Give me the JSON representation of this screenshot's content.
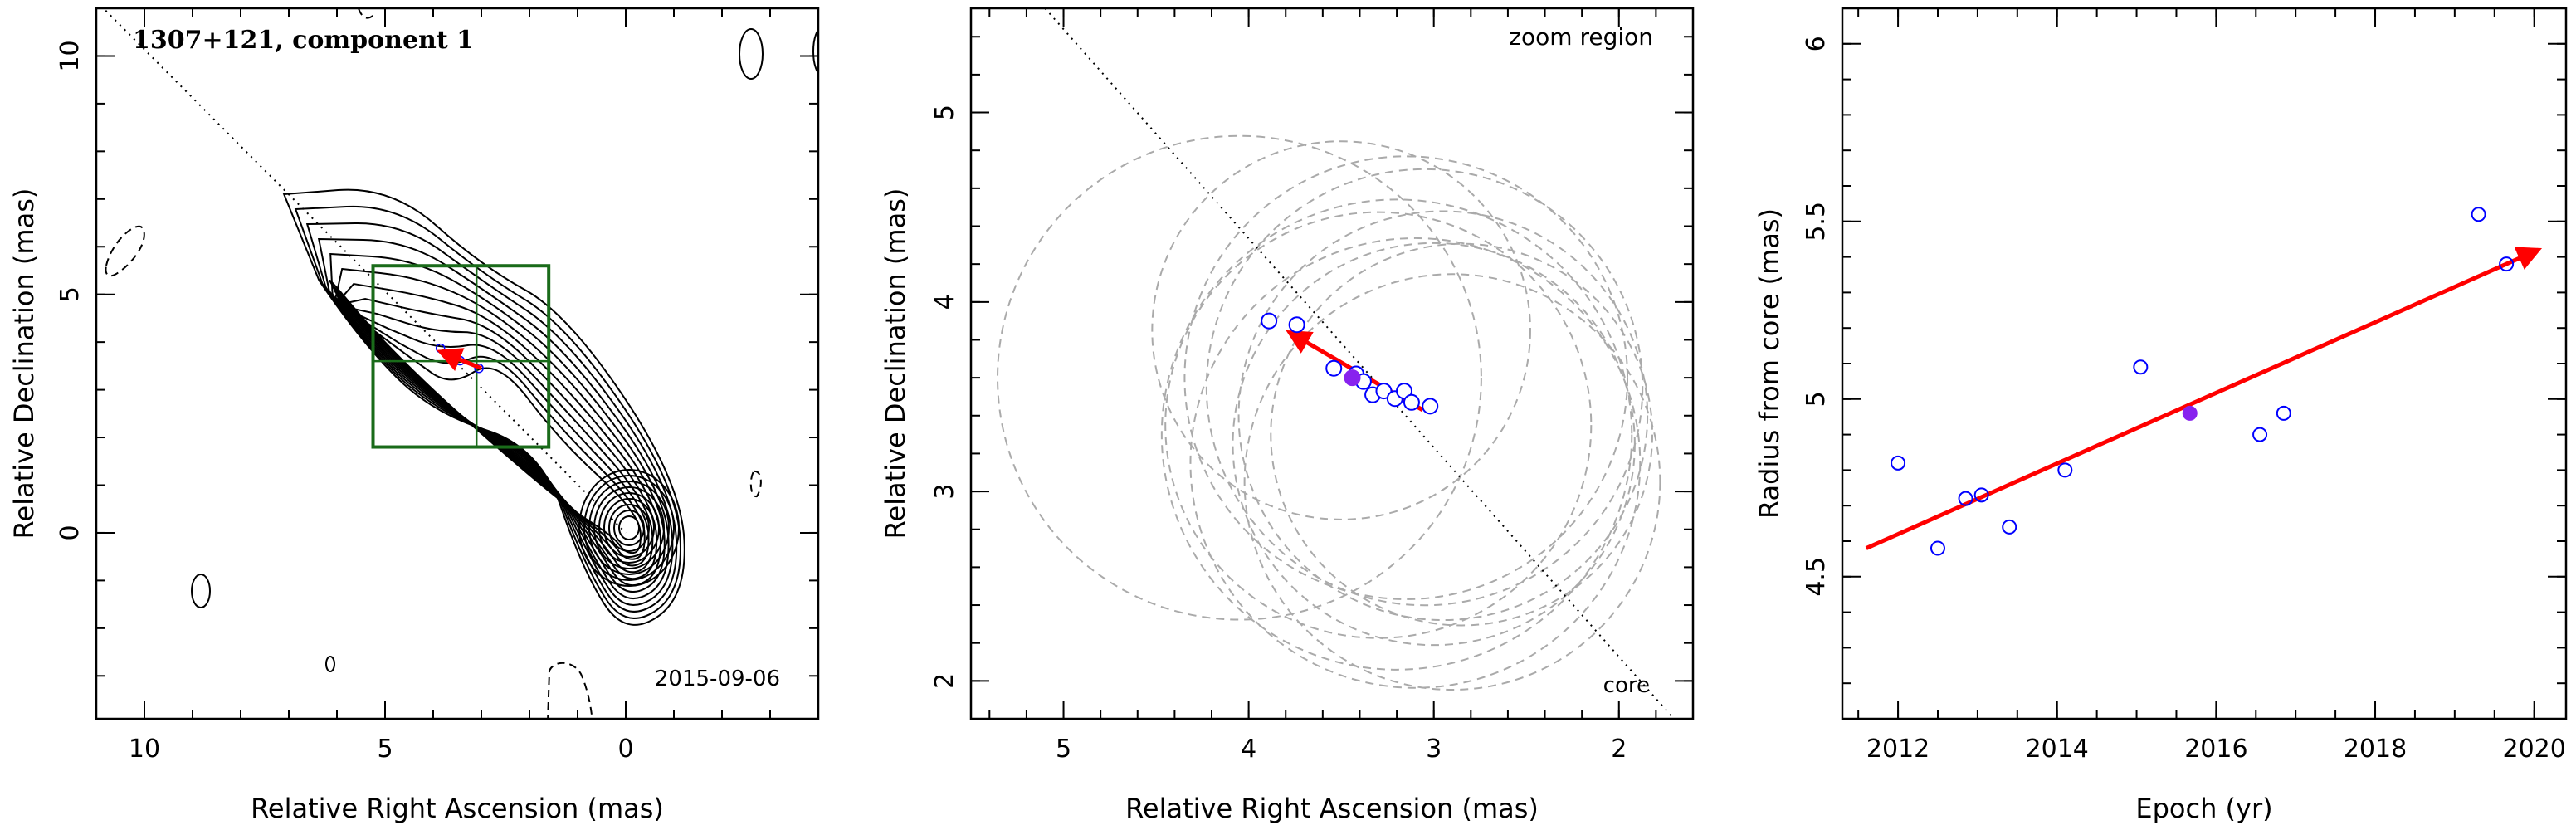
{
  "chart_data": [
    {
      "type": "scatter",
      "panel": "contour map",
      "title": "1307+121, component 1",
      "date_label": "2015-09-06",
      "xlabel": "Relative Right Ascension (mas)",
      "ylabel": "Relative Declination (mas)",
      "xlim": [
        11.0,
        -4.0
      ],
      "ylim": [
        -3.9,
        11.0
      ],
      "xticks": [
        10,
        5,
        0
      ],
      "xtick_labels": [
        "10",
        "5",
        "0"
      ],
      "yticks": [
        0,
        5,
        10
      ],
      "ytick_labels": [
        "0",
        "5",
        "10"
      ],
      "core": [
        0,
        0
      ],
      "trajectory_line": [
        [
          11.0,
          11.15
        ],
        [
          0.0,
          0.0
        ]
      ],
      "zoom_box": {
        "ra": [
          1.6,
          5.25
        ],
        "dec": [
          1.8,
          5.6
        ]
      },
      "crosshair": {
        "ra": 3.1,
        "dec": 3.6
      },
      "positions": [
        [
          3.85,
          3.87
        ],
        [
          3.44,
          3.61
        ],
        [
          3.05,
          3.45
        ]
      ],
      "arrow": {
        "from": [
          3.0,
          3.45
        ],
        "to": [
          3.85,
          3.8
        ]
      }
    },
    {
      "type": "scatter",
      "panel": "zoom region",
      "annotation": "zoom region",
      "core_label": "core",
      "xlabel": "Relative Right Ascension (mas)",
      "ylabel": "Relative Declination (mas)",
      "xlim": [
        5.5,
        1.6
      ],
      "ylim": [
        1.8,
        5.55
      ],
      "xticks": [
        5,
        4,
        3,
        2
      ],
      "xtick_labels": [
        "5",
        "4",
        "3",
        "2"
      ],
      "yticks": [
        2,
        3,
        4,
        5
      ],
      "ytick_labels": [
        "2",
        "3",
        "4",
        "5"
      ],
      "trajectory_line": [
        [
          5.1,
          5.55
        ],
        [
          1.64,
          1.73
        ]
      ],
      "points": [
        {
          "ra": 3.89,
          "dec": 3.9
        },
        {
          "ra": 3.74,
          "dec": 3.88
        },
        {
          "ra": 3.54,
          "dec": 3.65
        },
        {
          "ra": 3.42,
          "dec": 3.62
        },
        {
          "ra": 3.38,
          "dec": 3.58
        },
        {
          "ra": 3.33,
          "dec": 3.51
        },
        {
          "ra": 3.27,
          "dec": 3.53
        },
        {
          "ra": 3.21,
          "dec": 3.49
        },
        {
          "ra": 3.16,
          "dec": 3.53
        },
        {
          "ra": 3.12,
          "dec": 3.47
        },
        {
          "ra": 3.02,
          "dec": 3.45
        }
      ],
      "highlight": {
        "ra": 3.44,
        "dec": 3.6
      },
      "arrow": {
        "from": [
          3.06,
          3.43
        ],
        "to": [
          3.78,
          3.84
        ]
      },
      "error_circles": [
        {
          "ra": 4.05,
          "dec": 3.6,
          "r": 1.42
        },
        {
          "ra": 3.5,
          "dec": 3.85,
          "r": 1.11
        },
        {
          "ra": 3.3,
          "dec": 3.35,
          "r": 1.25
        },
        {
          "ra": 3.1,
          "dec": 3.15,
          "r": 1.32
        },
        {
          "ra": 2.95,
          "dec": 3.4,
          "r": 1.2
        },
        {
          "ra": 3.05,
          "dec": 3.55,
          "r": 1.28
        },
        {
          "ra": 3.0,
          "dec": 3.25,
          "r": 1.18
        },
        {
          "ra": 2.9,
          "dec": 3.05,
          "r": 1.22
        },
        {
          "ra": 3.15,
          "dec": 3.6,
          "r": 1.3
        },
        {
          "ra": 3.2,
          "dec": 3.3,
          "r": 1.38
        },
        {
          "ra": 2.85,
          "dec": 3.3,
          "r": 1.12
        }
      ]
    },
    {
      "type": "scatter",
      "panel": "radius vs epoch",
      "xlabel": "Epoch (yr)",
      "ylabel": "Radius from core (mas)",
      "xlim": [
        2011.3,
        2020.4
      ],
      "ylim": [
        4.1,
        6.1
      ],
      "xticks": [
        2012,
        2014,
        2016,
        2018,
        2020
      ],
      "xtick_labels": [
        "2012",
        "2014",
        "2016",
        "2018",
        "2020"
      ],
      "yticks": [
        4.5,
        5,
        5.5,
        6
      ],
      "ytick_labels": [
        "4.5",
        "5",
        "5.5",
        "6"
      ],
      "points": [
        {
          "x": 2012.0,
          "y": 4.82
        },
        {
          "x": 2012.5,
          "y": 4.58
        },
        {
          "x": 2012.85,
          "y": 4.72
        },
        {
          "x": 2013.05,
          "y": 4.73
        },
        {
          "x": 2013.4,
          "y": 4.64
        },
        {
          "x": 2014.1,
          "y": 4.8
        },
        {
          "x": 2015.05,
          "y": 5.09
        },
        {
          "x": 2016.55,
          "y": 4.9
        },
        {
          "x": 2016.85,
          "y": 4.96
        },
        {
          "x": 2019.3,
          "y": 5.52
        },
        {
          "x": 2019.65,
          "y": 5.38
        }
      ],
      "highlight": {
        "x": 2015.67,
        "y": 4.96
      },
      "fit_arrow": {
        "from": [
          2011.6,
          4.58
        ],
        "to": [
          2020.05,
          5.42
        ]
      },
      "colors": {
        "points": "#0000ff",
        "highlight": "#8822ee",
        "fit": "#ff0000"
      }
    }
  ]
}
